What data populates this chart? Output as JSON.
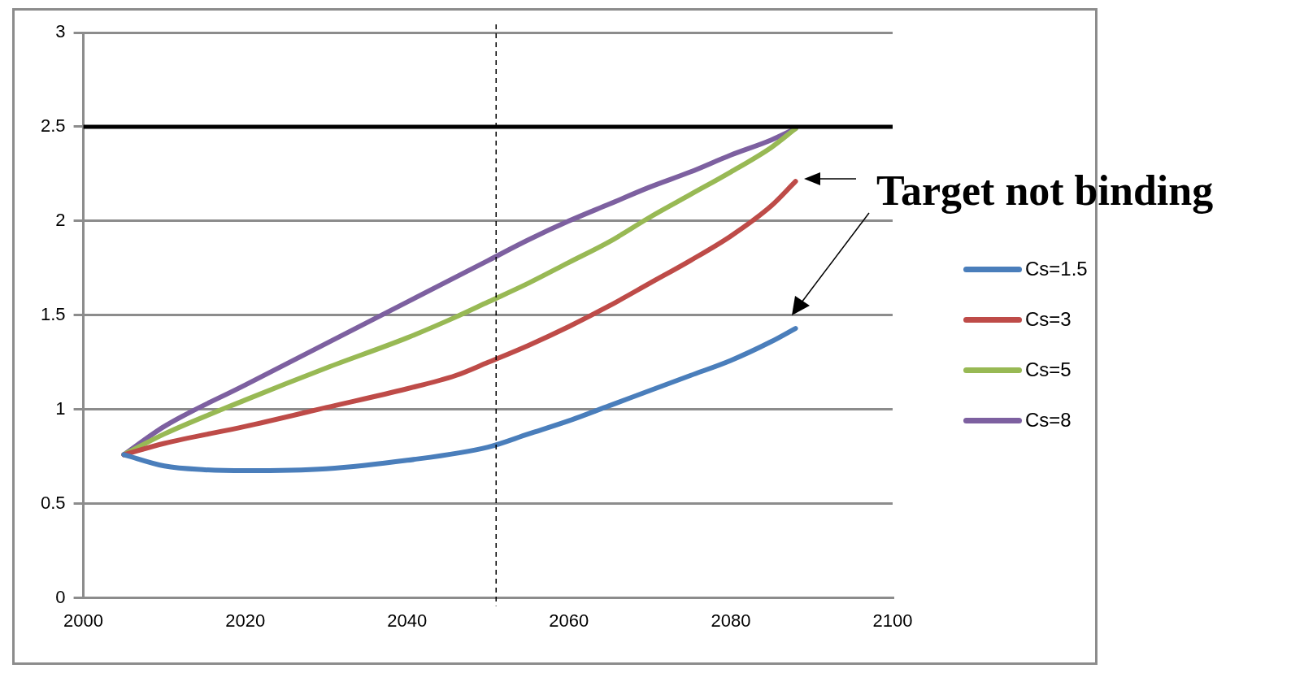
{
  "chart_data": {
    "type": "line",
    "annotations": [
      "Target not binding"
    ],
    "xlim": [
      2000,
      2100
    ],
    "xticks": [
      2000,
      2020,
      2040,
      2060,
      2080,
      2100
    ],
    "ylim": [
      0,
      3
    ],
    "yticks": [
      0,
      0.5,
      1,
      1.5,
      2,
      2.5,
      3
    ],
    "grid": "y",
    "legend": "right",
    "marker": "none",
    "line_style": "solid",
    "ref_lines": [
      {
        "axis": "y",
        "value": 2.5,
        "color": "#000000",
        "line_style": "solid"
      },
      {
        "axis": "x",
        "value": 2051,
        "color": "#000000",
        "line_style": "dashed"
      }
    ],
    "series": [
      {
        "name": "Cs=1.5",
        "color": "#4a7ebb",
        "x": [
          2005,
          2010,
          2015,
          2020,
          2030,
          2040,
          2050,
          2055,
          2060,
          2065,
          2070,
          2075,
          2080,
          2085,
          2088
        ],
        "values": [
          0.76,
          0.7,
          0.68,
          0.675,
          0.685,
          0.73,
          0.8,
          0.87,
          0.94,
          1.02,
          1.1,
          1.18,
          1.26,
          1.36,
          1.43
        ]
      },
      {
        "name": "Cs=3",
        "color": "#be4b48",
        "x": [
          2005,
          2010,
          2020,
          2030,
          2040,
          2046,
          2050,
          2055,
          2060,
          2065,
          2070,
          2075,
          2080,
          2085,
          2088
        ],
        "values": [
          0.76,
          0.82,
          0.91,
          1.01,
          1.11,
          1.18,
          1.25,
          1.34,
          1.44,
          1.55,
          1.67,
          1.79,
          1.92,
          2.08,
          2.21
        ]
      },
      {
        "name": "Cs=5",
        "color": "#98b954",
        "x": [
          2005,
          2010,
          2020,
          2030,
          2040,
          2046,
          2050,
          2055,
          2060,
          2065,
          2070,
          2075,
          2080,
          2085,
          2088
        ],
        "values": [
          0.76,
          0.87,
          1.05,
          1.22,
          1.38,
          1.49,
          1.57,
          1.67,
          1.78,
          1.89,
          2.02,
          2.14,
          2.26,
          2.39,
          2.49
        ]
      },
      {
        "name": "Cs=8",
        "color": "#7d60a0",
        "x": [
          2005,
          2010,
          2020,
          2030,
          2040,
          2050,
          2055,
          2060,
          2065,
          2070,
          2075,
          2080,
          2085,
          2088
        ],
        "values": [
          0.76,
          0.91,
          1.13,
          1.35,
          1.57,
          1.79,
          1.9,
          2.0,
          2.09,
          2.18,
          2.26,
          2.35,
          2.43,
          2.49
        ]
      }
    ]
  }
}
